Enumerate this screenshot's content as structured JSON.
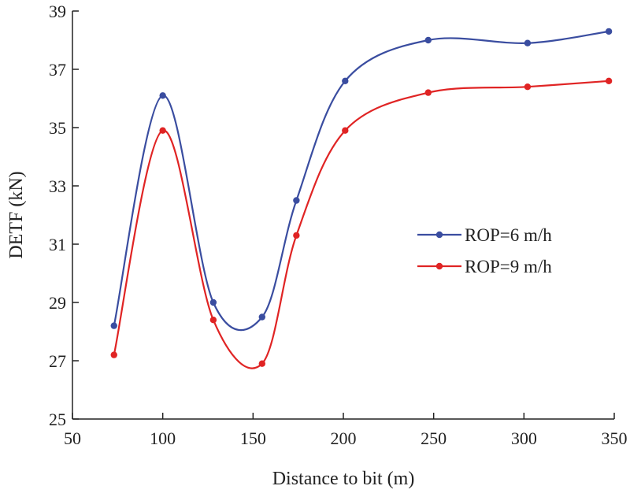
{
  "chart_data": {
    "type": "line",
    "title": "",
    "xlabel": "Distance to bit (m)",
    "ylabel": "DETF (kN)",
    "xlim": [
      50,
      350
    ],
    "ylim": [
      25,
      39
    ],
    "xticks": [
      50,
      100,
      150,
      200,
      250,
      300,
      350
    ],
    "yticks": [
      25,
      27,
      29,
      31,
      33,
      35,
      37,
      39
    ],
    "xtick_labels": [
      "50",
      "100",
      "150",
      "200",
      "250",
      "300",
      "350"
    ],
    "ytick_labels": [
      "25",
      "27",
      "29",
      "31",
      "33",
      "35",
      "37",
      "39"
    ],
    "grid": false,
    "legend_position": "center-right",
    "series": [
      {
        "name": "ROP=6 m/h",
        "color": "#3a4da0",
        "x": [
          73,
          100,
          128,
          155,
          174,
          201,
          247,
          302,
          347
        ],
        "y": [
          28.2,
          36.1,
          29.0,
          28.5,
          32.5,
          36.6,
          38.0,
          37.9,
          38.3
        ]
      },
      {
        "name": "ROP=9 m/h",
        "color": "#e02424",
        "x": [
          73,
          100,
          128,
          155,
          174,
          201,
          247,
          302,
          347
        ],
        "y": [
          27.2,
          34.9,
          28.4,
          26.9,
          31.3,
          34.9,
          36.2,
          36.4,
          36.6
        ]
      }
    ]
  }
}
